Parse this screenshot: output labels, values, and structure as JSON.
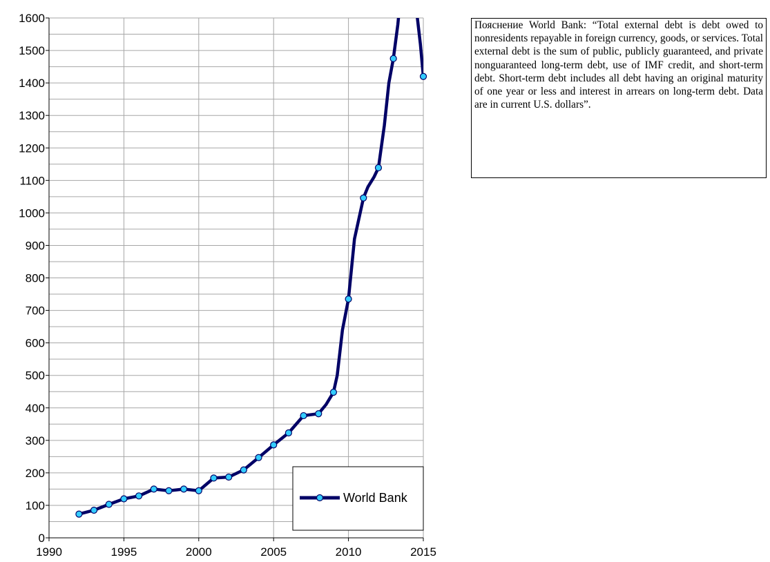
{
  "chart_data": {
    "type": "line",
    "x_ticks": [
      "1990",
      "1995",
      "2000",
      "2005",
      "2010",
      "2015"
    ],
    "y_ticks": [
      "0",
      "100",
      "200",
      "300",
      "400",
      "500",
      "600",
      "700",
      "800",
      "900",
      "1000",
      "1100",
      "1200",
      "1300",
      "1400",
      "1500",
      "1600"
    ],
    "xlim": [
      1990,
      2015
    ],
    "ylim": [
      0,
      1600
    ],
    "grid": true,
    "legend_position": "bottom-right",
    "series": [
      {
        "name": "World Bank",
        "color": "#000066",
        "marker_color": "#33ccff",
        "x": [
          1992,
          1993,
          1994,
          1995,
          1996,
          1997,
          1998,
          1999,
          2000,
          2001,
          2002,
          2003,
          2004,
          2005,
          2006,
          2007,
          2008,
          2009,
          2010,
          2011,
          2012,
          2013,
          2015
        ],
        "values": [
          73,
          85,
          103,
          120,
          129,
          150,
          145,
          150,
          145,
          184,
          187,
          209,
          247,
          286,
          323,
          376,
          382,
          448,
          735,
          1046,
          1139,
          1475,
          1420
        ],
        "line_path": [
          [
            1992,
            73
          ],
          [
            1993,
            85
          ],
          [
            1994,
            103
          ],
          [
            1995,
            120
          ],
          [
            1996,
            129
          ],
          [
            1997,
            150
          ],
          [
            1998,
            145
          ],
          [
            1999,
            150
          ],
          [
            2000,
            145
          ],
          [
            2001,
            184
          ],
          [
            2002,
            187
          ],
          [
            2003,
            209
          ],
          [
            2004,
            247
          ],
          [
            2005,
            286
          ],
          [
            2006,
            323
          ],
          [
            2007,
            376
          ],
          [
            2008,
            382
          ],
          [
            2008.5,
            410
          ],
          [
            2009,
            448
          ],
          [
            2009.25,
            500
          ],
          [
            2009.6,
            640
          ],
          [
            2010,
            735
          ],
          [
            2010.4,
            920
          ],
          [
            2011,
            1046
          ],
          [
            2011.3,
            1080
          ],
          [
            2011.7,
            1110
          ],
          [
            2012,
            1139
          ],
          [
            2012.4,
            1270
          ],
          [
            2012.7,
            1400
          ],
          [
            2013,
            1475
          ],
          [
            2013.3,
            1580
          ],
          [
            2013.55,
            1700
          ],
          [
            2014.5,
            1640
          ],
          [
            2014.8,
            1520
          ],
          [
            2015,
            1420
          ]
        ]
      }
    ]
  },
  "note": {
    "text": "Пояснение World Bank: “Total external debt is debt owed to nonresidents repayable in foreign currency, goods, or services. Total external debt is the sum of public, publicly guaranteed, and private nonguaranteed long-term debt, use of IMF credit, and short-term debt. Short-term debt includes all debt having an original maturity of one year or less and interest in arrears on long-term debt. Data are in current U.S. dollars”."
  }
}
